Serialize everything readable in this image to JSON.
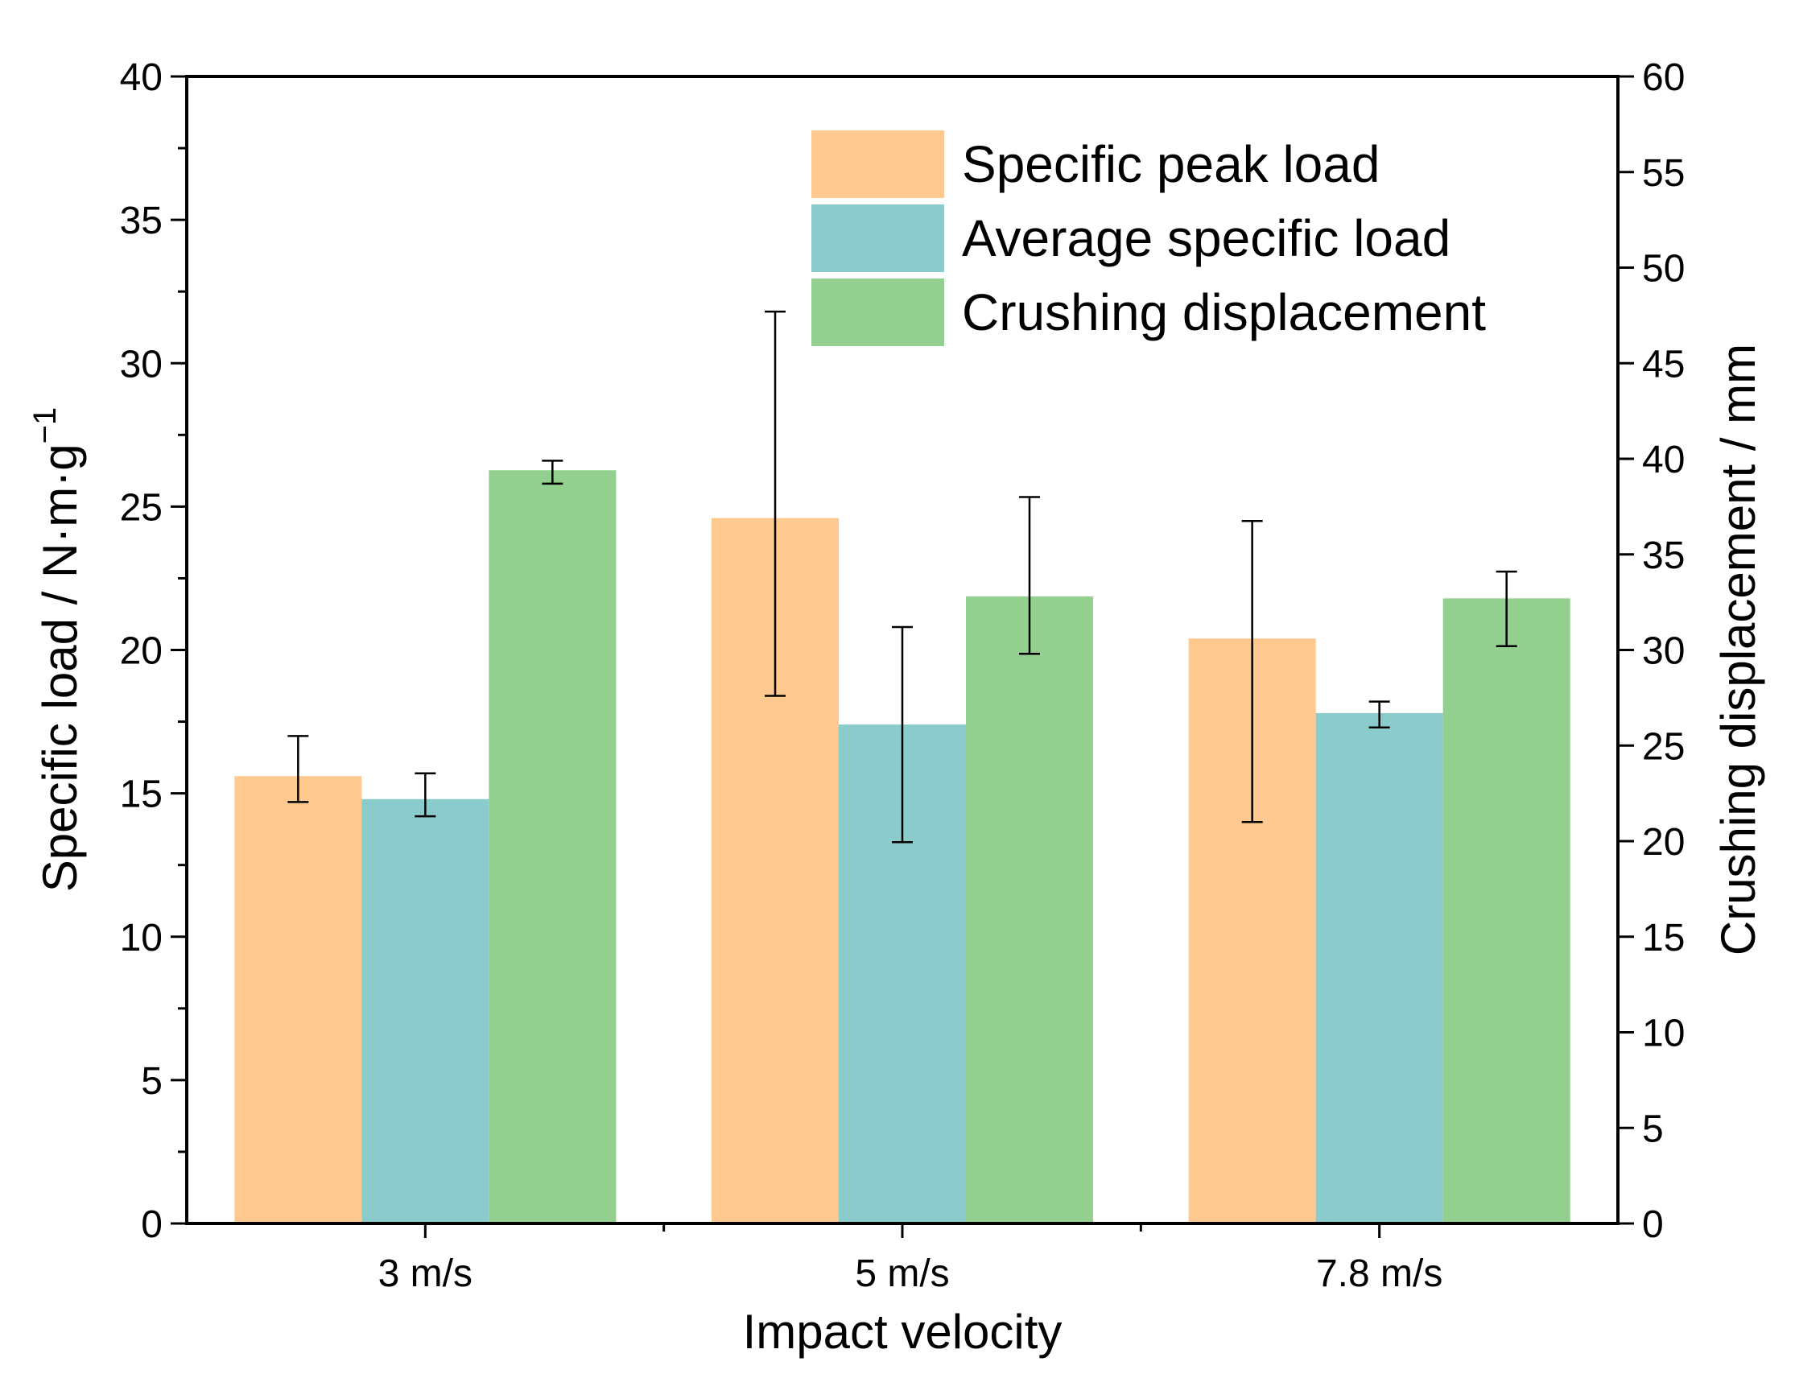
{
  "chart_data": {
    "type": "bar",
    "title": "",
    "xlabel": "Impact velocity",
    "ylabel_left_main": "Specific load / N·m·g",
    "ylabel_left_sup": "−1",
    "ylabel_right": "Crushing displacement / mm",
    "categories": [
      "3 m/s",
      "5 m/s",
      "7.8 m/s"
    ],
    "ylim_left": [
      0,
      40
    ],
    "yticks_left": [
      "0",
      "5",
      "10",
      "15",
      "20",
      "25",
      "30",
      "35",
      "40"
    ],
    "ylim_right": [
      0,
      60
    ],
    "yticks_right": [
      "0",
      "5",
      "10",
      "15",
      "20",
      "25",
      "30",
      "35",
      "40",
      "45",
      "50",
      "55",
      "60"
    ],
    "grid": false,
    "legend_position": "top-right",
    "series": [
      {
        "name": "Specific peak load",
        "axis": "left",
        "color": "#fdc98f",
        "values": [
          15.6,
          24.6,
          20.4
        ],
        "error_low": [
          14.7,
          18.4,
          14.0
        ],
        "error_high": [
          17.0,
          31.8,
          24.5
        ]
      },
      {
        "name": "Average specific load",
        "axis": "left",
        "color": "#8ccbcb",
        "values": [
          14.8,
          17.4,
          17.8
        ],
        "error_low": [
          14.2,
          13.3,
          17.3
        ],
        "error_high": [
          15.7,
          20.8,
          18.2
        ]
      },
      {
        "name": "Crushing displacement",
        "axis": "right",
        "color": "#93d090",
        "values": [
          39.4,
          32.8,
          32.7
        ],
        "error_low": [
          38.7,
          29.8,
          30.2
        ],
        "error_high": [
          39.9,
          38.0,
          34.1
        ]
      }
    ]
  }
}
